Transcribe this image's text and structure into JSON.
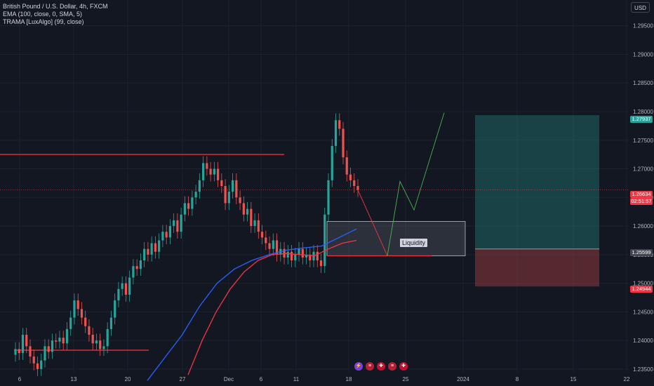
{
  "header": {
    "title": "British Pound / U.S. Dollar, 4h, FXCM",
    "indicator_1": "EMA (100, close, 0, SMA, 5)",
    "indicator_2": "TRAMA [LuxAlgo] (99, close)",
    "currency_button": "USD"
  },
  "price_tags": {
    "target": "1.27937",
    "current": "1.26634",
    "countdown": "02:51:57",
    "entry": "1.25599",
    "stop": "1.24944"
  },
  "annotation": {
    "label": "Liquidity"
  },
  "event_icons": [
    "lightning-icon",
    "us-flag-icon",
    "uk-flag-icon",
    "us-flag-icon",
    "uk-flag-icon"
  ],
  "colors": {
    "up": "#26a69a",
    "down": "#ef5350",
    "ema": "#2962ff",
    "trama": "#f23645",
    "bg": "#131722",
    "profit": "#26a69a",
    "loss": "#ef5350"
  },
  "chart_data": {
    "type": "candlestick",
    "title": "British Pound / U.S. Dollar, 4h, FXCM",
    "y_ticks": [
      "1.29500",
      "1.29000",
      "1.28500",
      "1.28000",
      "1.27500",
      "1.27000",
      "1.26500",
      "1.26000",
      "1.25500",
      "1.25000",
      "1.24500",
      "1.24000",
      "1.23500"
    ],
    "ylim": [
      1.2345,
      1.2995
    ],
    "x_ticks": [
      "6",
      "13",
      "20",
      "27",
      "Dec",
      "6",
      "11",
      "18",
      "25",
      "2024",
      "8",
      "15",
      "22"
    ],
    "horizontal_levels": [
      1.2725,
      1.2663,
      1.2383,
      1.2548
    ],
    "liquidity_zone": {
      "top": 1.2608,
      "bottom": 1.2548
    },
    "position": {
      "type": "long",
      "target": 1.27937,
      "entry": 1.25599,
      "stop": 1.24944
    },
    "closes": [
      1.2385,
      1.2378,
      1.241,
      1.239,
      1.2372,
      1.236,
      1.235,
      1.2365,
      1.239,
      1.238,
      1.24,
      1.2398,
      1.2405,
      1.2395,
      1.242,
      1.244,
      1.247,
      1.2455,
      1.244,
      1.2425,
      1.241,
      1.2395,
      1.24,
      1.2385,
      1.239,
      1.242,
      1.244,
      1.247,
      1.249,
      1.25,
      1.248,
      1.251,
      1.253,
      1.2525,
      1.254,
      1.256,
      1.255,
      1.257,
      1.2555,
      1.2575,
      1.259,
      1.258,
      1.26,
      1.261,
      1.259,
      1.262,
      1.264,
      1.263,
      1.265,
      1.266,
      1.268,
      1.271,
      1.27,
      1.269,
      1.27,
      1.268,
      1.267,
      1.264,
      1.266,
      1.268,
      1.265,
      1.264,
      1.262,
      1.263,
      1.26,
      1.261,
      1.259,
      1.258,
      1.257,
      1.256,
      1.2575,
      1.255,
      1.256,
      1.2545,
      1.2555,
      1.254,
      1.255,
      1.256,
      1.2545,
      1.255,
      1.254,
      1.2555,
      1.254,
      1.253,
      1.262,
      1.268,
      1.274,
      1.2785,
      1.277,
      1.272,
      1.269,
      1.268,
      1.267,
      1.2663
    ],
    "ema_series": [
      1.233,
      1.237,
      1.241,
      1.246,
      1.25,
      1.2525,
      1.254,
      1.255,
      1.2558,
      1.2562,
      1.2565,
      1.258,
      1.2595
    ],
    "trama_series": [
      1.234,
      1.24,
      1.245,
      1.249,
      1.252,
      1.254,
      1.255,
      1.2552,
      1.255,
      1.2548,
      1.256,
      1.257,
      1.2575
    ],
    "projection": [
      1.2663,
      1.2548,
      1.2678,
      1.2628,
      1.2798
    ]
  }
}
